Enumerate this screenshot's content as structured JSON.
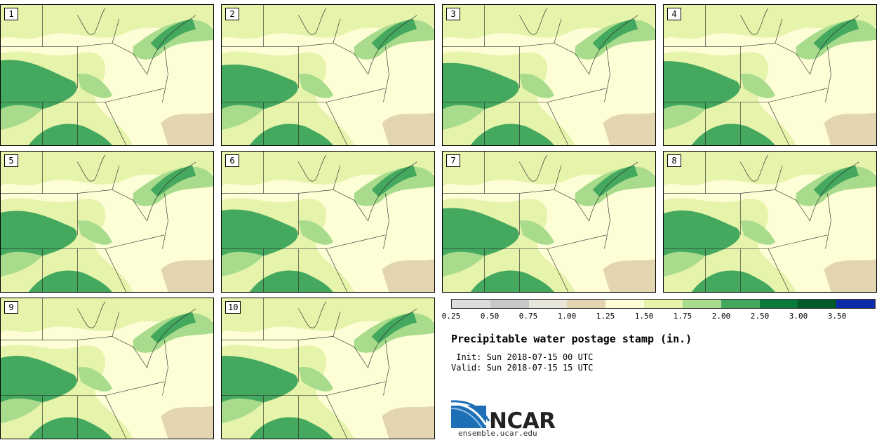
{
  "panels": [
    {
      "label": "1"
    },
    {
      "label": "2"
    },
    {
      "label": "3"
    },
    {
      "label": "4"
    },
    {
      "label": "5"
    },
    {
      "label": "6"
    },
    {
      "label": "7"
    },
    {
      "label": "8"
    },
    {
      "label": "9"
    },
    {
      "label": "10"
    }
  ],
  "colorbar": {
    "colors": [
      "#dcdcdc",
      "#c8c8c8",
      "#e8e6da",
      "#e3d5b0",
      "#fdfdd6",
      "#e6f3aa",
      "#a8dc8c",
      "#45a85f",
      "#0a7a3a",
      "#005a2a",
      "#0f2aa8"
    ],
    "tick_labels": [
      "0.25",
      "0.50",
      "0.75",
      "1.00",
      "1.25",
      "1.50",
      "1.75",
      "2.00",
      "2.50",
      "3.00",
      "3.50"
    ]
  },
  "title": "Precipitable water postage stamp (in.)",
  "init_line": " Init: Sun 2018-07-15 00 UTC",
  "valid_line": "Valid: Sun 2018-07-15 15 UTC",
  "logo_text": "NCAR",
  "url": "ensemble.ucar.edu"
}
